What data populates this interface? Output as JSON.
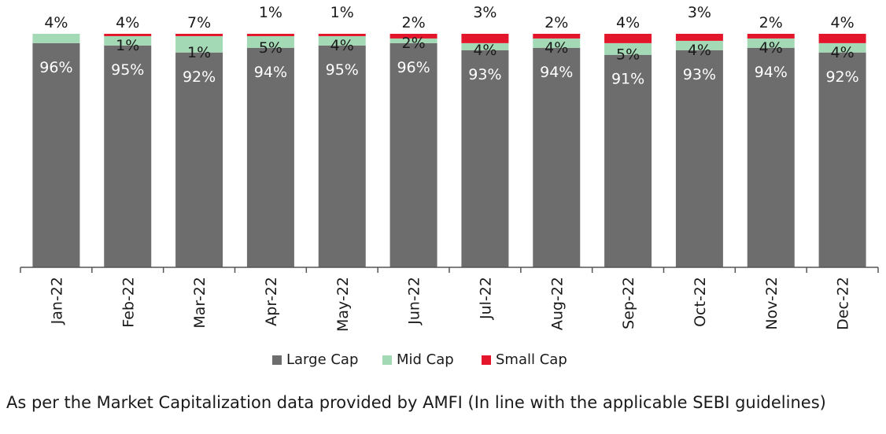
{
  "chart_data": {
    "type": "bar",
    "stacked": true,
    "categories": [
      "Jan-22",
      "Feb-22",
      "Mar-22",
      "Apr-22",
      "May-22",
      "Jun-22",
      "Jul-22",
      "Aug-22",
      "Sep-22",
      "Oct-22",
      "Nov-22",
      "Dec-22"
    ],
    "series": [
      {
        "name": "Large Cap",
        "color": "#6d6d6d",
        "values": [
          96,
          95,
          92,
          94,
          95,
          96,
          93,
          94,
          91,
          93,
          94,
          92
        ]
      },
      {
        "name": "Mid Cap",
        "color": "#a3d9b4",
        "values": [
          4,
          4,
          7,
          5,
          4,
          2,
          3,
          4,
          5,
          4,
          4,
          4
        ]
      },
      {
        "name": "Small Cap",
        "color": "#e3162b",
        "values": [
          0,
          1,
          1,
          1,
          1,
          2,
          4,
          2,
          4,
          3,
          2,
          4
        ]
      }
    ],
    "data_labels": {
      "large": [
        "96%",
        "95%",
        "92%",
        "94%",
        "95%",
        "96%",
        "93%",
        "94%",
        "91%",
        "93%",
        "94%",
        "92%"
      ],
      "inner": [
        "",
        "1%",
        "1%",
        "5%",
        "4%",
        "2%",
        "4%",
        "4%",
        "5%",
        "4%",
        "4%",
        "4%"
      ],
      "top": [
        "4%",
        "4%",
        "7%",
        "1%",
        "1%",
        "2%",
        "3%",
        "2%",
        "4%",
        "3%",
        "2%",
        "4%"
      ]
    },
    "ylim": [
      0,
      100
    ],
    "grid": false,
    "legend_position": "bottom"
  },
  "legend": [
    "Large Cap",
    "Mid Cap",
    "Small Cap"
  ],
  "note": "As per the Market Capitalization data provided by AMFI (In line with the applicable SEBI guidelines)"
}
